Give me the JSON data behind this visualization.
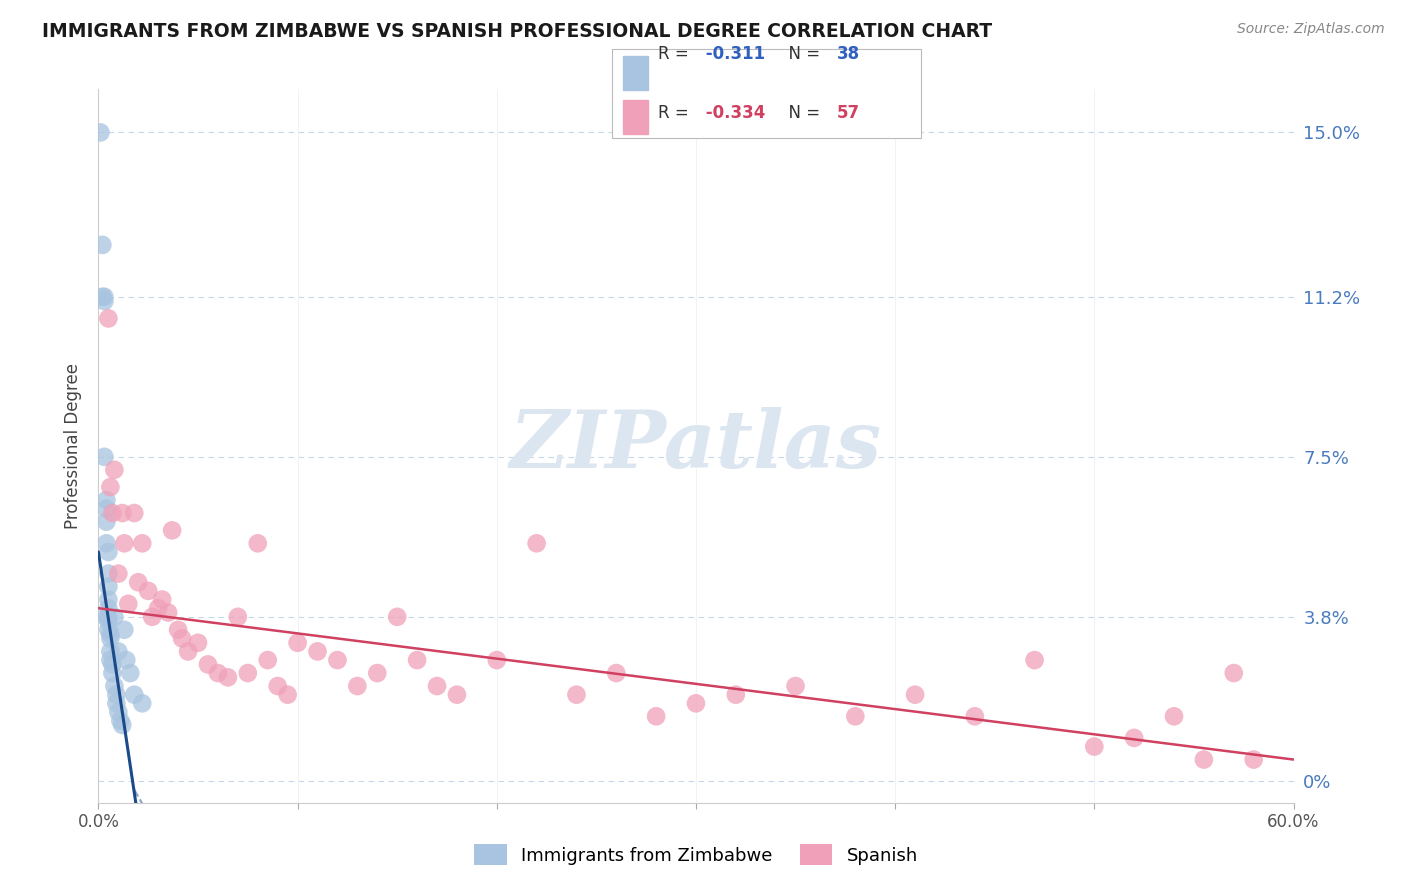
{
  "title": "IMMIGRANTS FROM ZIMBABWE VS SPANISH PROFESSIONAL DEGREE CORRELATION CHART",
  "source": "Source: ZipAtlas.com",
  "ylabel_label": "Professional Degree",
  "ylabel_ticks": [
    0.0,
    3.8,
    7.5,
    11.2,
    15.0
  ],
  "xlim": [
    0.0,
    0.6
  ],
  "ylim": [
    0.0,
    0.16
  ],
  "series1_name": "Immigrants from Zimbabwe",
  "series1_color": "#a8c4e0",
  "series1_line_color": "#1a4a8a",
  "series1_R": -0.311,
  "series1_N": 38,
  "series2_name": "Spanish",
  "series2_color": "#f0a0b8",
  "series2_line_color": "#d04060",
  "series2_R": -0.334,
  "series2_N": 57,
  "legend_R1_color": "#3060c0",
  "legend_R2_color": "#d04060",
  "background_color": "#ffffff",
  "grid_color": "#c8d8e8",
  "watermark_text": "ZIPatlas",
  "watermark_color": "#d0dce8",
  "series1_x": [
    0.001,
    0.002,
    0.002,
    0.003,
    0.003,
    0.003,
    0.004,
    0.004,
    0.004,
    0.004,
    0.004,
    0.005,
    0.005,
    0.005,
    0.005,
    0.005,
    0.005,
    0.005,
    0.005,
    0.006,
    0.006,
    0.006,
    0.006,
    0.007,
    0.007,
    0.008,
    0.008,
    0.009,
    0.009,
    0.01,
    0.01,
    0.011,
    0.012,
    0.013,
    0.014,
    0.016,
    0.018,
    0.022
  ],
  "series1_y": [
    0.15,
    0.124,
    0.112,
    0.112,
    0.111,
    0.075,
    0.065,
    0.063,
    0.06,
    0.055,
    0.038,
    0.053,
    0.048,
    0.045,
    0.042,
    0.04,
    0.038,
    0.037,
    0.035,
    0.034,
    0.033,
    0.03,
    0.028,
    0.027,
    0.025,
    0.038,
    0.022,
    0.02,
    0.018,
    0.016,
    0.03,
    0.014,
    0.013,
    0.035,
    0.028,
    0.025,
    0.02,
    0.018
  ],
  "series2_x": [
    0.005,
    0.006,
    0.007,
    0.008,
    0.01,
    0.012,
    0.013,
    0.015,
    0.018,
    0.02,
    0.022,
    0.025,
    0.027,
    0.03,
    0.032,
    0.035,
    0.037,
    0.04,
    0.042,
    0.045,
    0.05,
    0.055,
    0.06,
    0.065,
    0.07,
    0.075,
    0.08,
    0.085,
    0.09,
    0.095,
    0.1,
    0.11,
    0.12,
    0.13,
    0.14,
    0.15,
    0.16,
    0.17,
    0.18,
    0.2,
    0.22,
    0.24,
    0.26,
    0.28,
    0.3,
    0.32,
    0.35,
    0.38,
    0.41,
    0.44,
    0.47,
    0.5,
    0.52,
    0.54,
    0.555,
    0.57,
    0.58
  ],
  "series2_y": [
    0.107,
    0.068,
    0.062,
    0.072,
    0.048,
    0.062,
    0.055,
    0.041,
    0.062,
    0.046,
    0.055,
    0.044,
    0.038,
    0.04,
    0.042,
    0.039,
    0.058,
    0.035,
    0.033,
    0.03,
    0.032,
    0.027,
    0.025,
    0.024,
    0.038,
    0.025,
    0.055,
    0.028,
    0.022,
    0.02,
    0.032,
    0.03,
    0.028,
    0.022,
    0.025,
    0.038,
    0.028,
    0.022,
    0.02,
    0.028,
    0.055,
    0.02,
    0.025,
    0.015,
    0.018,
    0.02,
    0.022,
    0.015,
    0.02,
    0.015,
    0.028,
    0.008,
    0.01,
    0.015,
    0.005,
    0.025,
    0.005
  ],
  "trend1_x0": 0.0,
  "trend1_y0": 0.053,
  "trend1_x1": 0.022,
  "trend1_y1": -0.015,
  "trend2_x0": 0.0,
  "trend2_y0": 0.04,
  "trend2_x1": 0.6,
  "trend2_y1": 0.005
}
